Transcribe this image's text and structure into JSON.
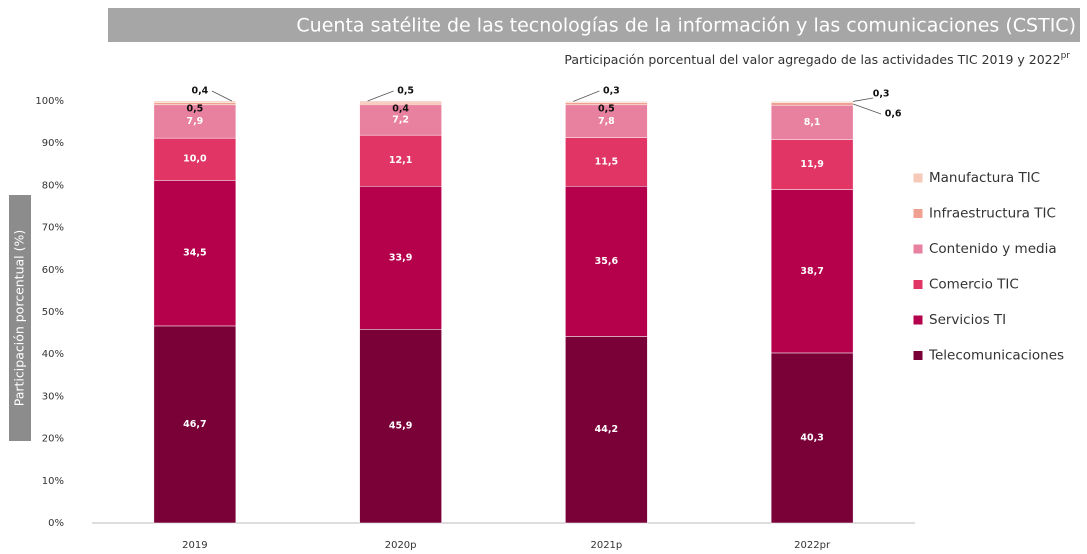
{
  "chart_data": {
    "type": "stacked_bar",
    "title": "Cuenta satélite de las tecnologías de la información y las comunicaciones (CSTIC)",
    "subtitle": "Participación porcentual del valor agregado de las actividades TIC 2019 y 2022",
    "subtitle_superscript": "pr",
    "y_label": "Participación porcentual (%)",
    "categories": [
      "2019",
      "2020p",
      "2021p",
      "2022pr"
    ],
    "series": [
      {
        "name": "Telecomunicaciones",
        "color": "#7a0038",
        "values": [
          46.7,
          45.9,
          44.2,
          40.3
        ],
        "value_labels": [
          "46,7",
          "45,9",
          "44,2",
          "40,3"
        ]
      },
      {
        "name": "Servicios TI",
        "color": "#b5004b",
        "values": [
          34.5,
          33.9,
          35.6,
          38.7
        ],
        "value_labels": [
          "34,5",
          "33,9",
          "35,6",
          "38,7"
        ]
      },
      {
        "name": "Comercio TIC",
        "color": "#e03565",
        "values": [
          10.0,
          12.1,
          11.5,
          11.9
        ],
        "value_labels": [
          "10,0",
          "12,1",
          "11,5",
          "11,9"
        ]
      },
      {
        "name": "Contenido y media",
        "color": "#e8809f",
        "values": [
          7.9,
          7.2,
          7.8,
          8.1
        ],
        "value_labels": [
          "7,9",
          "7,2",
          "7,8",
          "8,1"
        ]
      },
      {
        "name": "Infraestructura TIC",
        "color": "#f0a090",
        "values": [
          0.5,
          0.4,
          0.5,
          0.6
        ],
        "value_labels": [
          "0,5",
          "0,4",
          "0,5",
          "0,6"
        ]
      },
      {
        "name": "Manufactura TIC",
        "color": "#f7c9b8",
        "values": [
          0.4,
          0.5,
          0.3,
          0.3
        ],
        "value_labels": [
          "0,4",
          "0,5",
          "0,3",
          "0,3"
        ]
      }
    ],
    "ylim": [
      0,
      100
    ],
    "yticks": [
      {
        "value": 0,
        "label": "0%"
      },
      {
        "value": 10,
        "label": "10%"
      },
      {
        "value": 20,
        "label": "20%"
      },
      {
        "value": 30,
        "label": "30%"
      },
      {
        "value": 40,
        "label": "40%"
      },
      {
        "value": 50,
        "label": "50%"
      },
      {
        "value": 60,
        "label": "60%"
      },
      {
        "value": 70,
        "label": "70%"
      },
      {
        "value": 80,
        "label": "80%"
      },
      {
        "value": 90,
        "label": "90%"
      },
      {
        "value": 100,
        "label": "100%"
      }
    ],
    "legend": "right"
  }
}
